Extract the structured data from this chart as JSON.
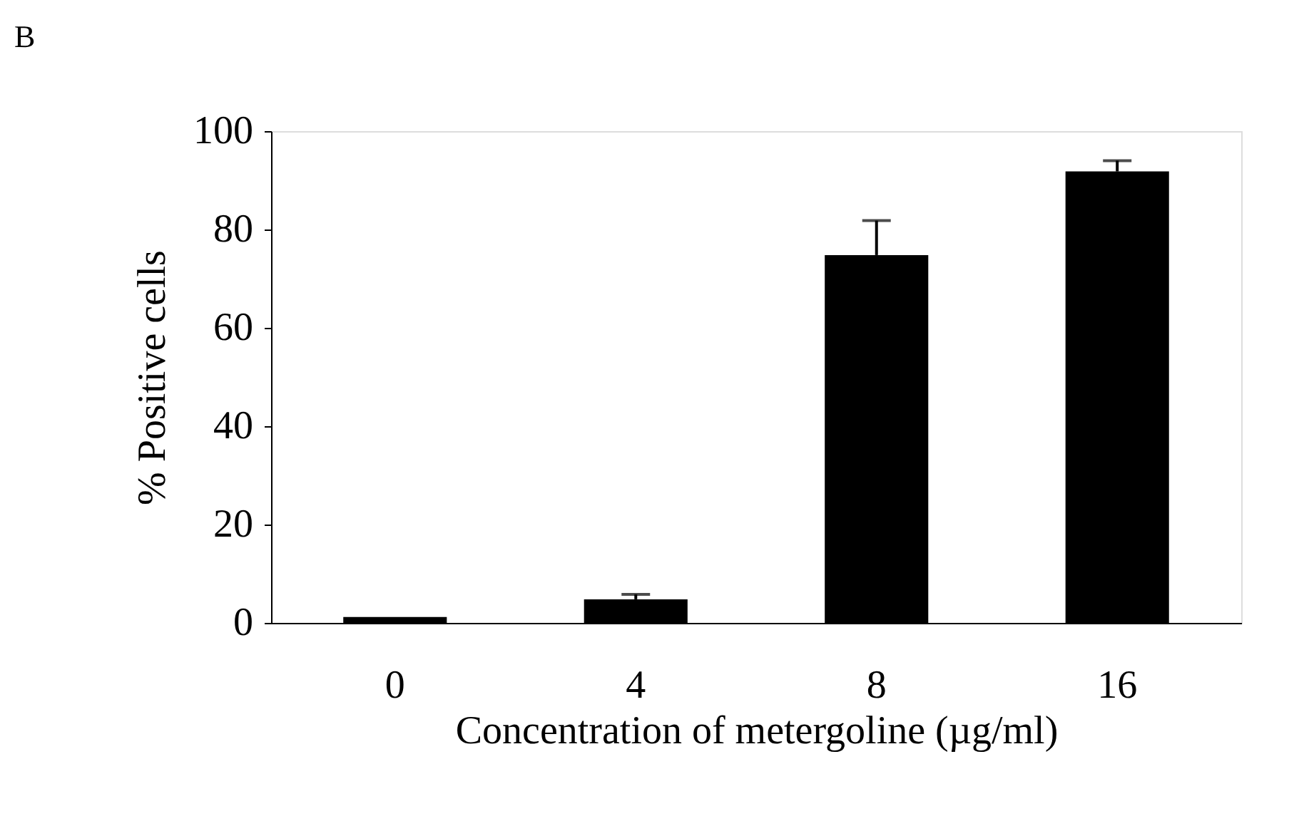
{
  "chart_data": {
    "type": "bar",
    "title": "B",
    "xlabel": "Concentration of metergoline (µg/ml)",
    "ylabel": "% Positive cells",
    "categories": [
      "0",
      "4",
      "8",
      "16"
    ],
    "values": [
      1.2,
      4.8,
      74.8,
      91.8
    ],
    "errors": [
      null,
      1,
      7,
      2.2
    ],
    "color": "#000000",
    "ylim": [
      0,
      100
    ],
    "yticks": [
      0,
      20,
      40,
      60,
      80,
      100
    ],
    "grid": false
  }
}
